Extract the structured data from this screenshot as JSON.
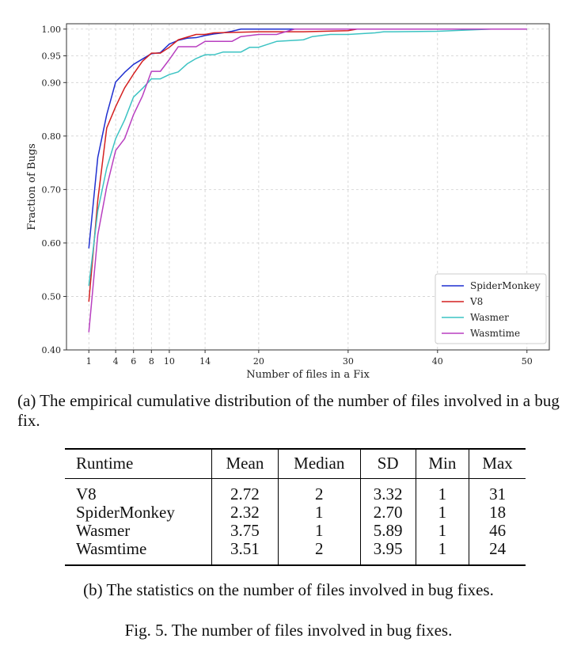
{
  "chart_data": {
    "type": "line",
    "xlabel": "Number of files in a Fix",
    "ylabel": "Fraction of Bugs",
    "xlim": [
      -1.5,
      52.5
    ],
    "ylim": [
      0.4,
      1.01
    ],
    "xticks": [
      1,
      4,
      6,
      8,
      10,
      14,
      20,
      30,
      40,
      50
    ],
    "yticks": [
      0.4,
      0.5,
      0.6,
      0.7,
      0.8,
      0.9,
      0.95,
      1.0
    ],
    "ytick_labels": [
      "0.40",
      "0.50",
      "0.60",
      "0.70",
      "0.80",
      "0.90",
      "0.95",
      "1.00"
    ],
    "grid": true,
    "legend_position": "lower-right",
    "series": [
      {
        "name": "SpiderMonkey",
        "color": "#1f2fd0",
        "x": [
          1,
          2,
          3,
          4,
          5,
          6,
          7,
          8,
          9,
          10,
          11,
          12,
          13,
          14,
          15,
          16,
          17,
          18,
          50
        ],
        "y": [
          0.59,
          0.76,
          0.84,
          0.901,
          0.919,
          0.934,
          0.944,
          0.954,
          0.956,
          0.972,
          0.979,
          0.983,
          0.984,
          0.988,
          0.991,
          0.993,
          0.996,
          1.0,
          1.0
        ]
      },
      {
        "name": "V8",
        "color": "#d42020",
        "x": [
          1,
          2,
          3,
          4,
          5,
          6,
          7,
          8,
          9,
          10,
          11,
          12,
          13,
          14,
          15,
          20,
          25,
          30,
          31,
          50
        ],
        "y": [
          0.49,
          0.68,
          0.815,
          0.855,
          0.89,
          0.916,
          0.94,
          0.955,
          0.955,
          0.966,
          0.98,
          0.985,
          0.99,
          0.99,
          0.993,
          0.995,
          0.995,
          0.997,
          1.0,
          1.0
        ]
      },
      {
        "name": "Wasmer",
        "color": "#3cc3c3",
        "x": [
          1,
          2,
          3,
          4,
          5,
          6,
          7,
          8,
          9,
          10,
          11,
          12,
          13,
          14,
          15,
          16,
          17,
          18,
          19,
          20,
          22,
          25,
          26,
          27,
          28,
          30,
          33,
          34,
          35,
          40,
          46,
          50
        ],
        "y": [
          0.52,
          0.66,
          0.74,
          0.795,
          0.83,
          0.873,
          0.889,
          0.907,
          0.907,
          0.915,
          0.92,
          0.935,
          0.945,
          0.952,
          0.952,
          0.957,
          0.957,
          0.957,
          0.966,
          0.966,
          0.977,
          0.98,
          0.986,
          0.988,
          0.99,
          0.99,
          0.993,
          0.995,
          0.995,
          0.996,
          1.0,
          1.0
        ]
      },
      {
        "name": "Wasmtime",
        "color": "#b83fc0",
        "x": [
          1,
          2,
          3,
          4,
          5,
          6,
          7,
          8,
          9,
          10,
          11,
          12,
          13,
          14,
          15,
          16,
          17,
          18,
          20,
          22,
          24,
          50
        ],
        "y": [
          0.433,
          0.615,
          0.705,
          0.773,
          0.795,
          0.84,
          0.875,
          0.921,
          0.921,
          0.943,
          0.967,
          0.967,
          0.967,
          0.977,
          0.977,
          0.977,
          0.977,
          0.986,
          0.99,
          0.99,
          1.0,
          1.0
        ]
      }
    ]
  },
  "captions": {
    "a": "(a) The empirical cumulative distribution of the number of files involved in a bug fix.",
    "b": "(b) The statistics on the number of files involved in bug fixes.",
    "fig": "Fig. 5.  The number of files involved in bug fixes."
  },
  "stats_table": {
    "headers": [
      "Runtime",
      "Mean",
      "Median",
      "SD",
      "Min",
      "Max"
    ],
    "rows": [
      [
        "V8",
        "2.72",
        "2",
        "3.32",
        "1",
        "31"
      ],
      [
        "SpiderMonkey",
        "2.32",
        "1",
        "2.70",
        "1",
        "18"
      ],
      [
        "Wasmer",
        "3.75",
        "1",
        "5.89",
        "1",
        "46"
      ],
      [
        "Wasmtime",
        "3.51",
        "2",
        "3.95",
        "1",
        "24"
      ]
    ]
  }
}
